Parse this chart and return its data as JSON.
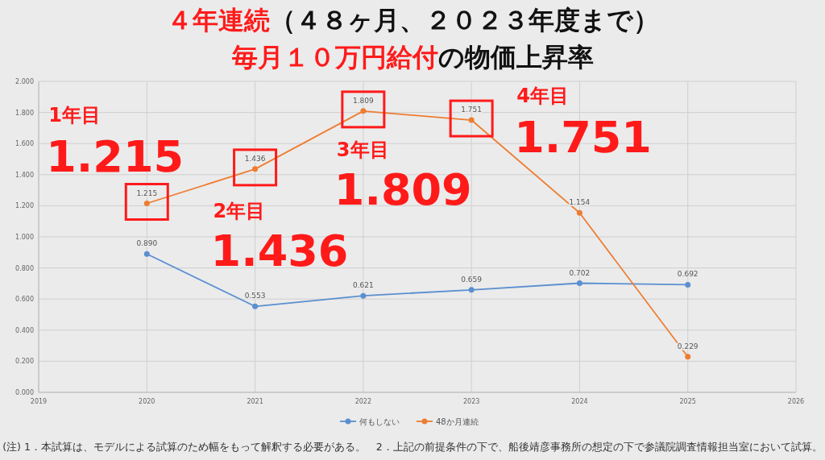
{
  "chart_data": {
    "type": "line",
    "title": "４年連続（４８ヶ月、２０２３年度まで）",
    "subtitle": "毎月１０万円給付の物価上昇率",
    "x": [
      2020,
      2021,
      2022,
      2023,
      2024,
      2025
    ],
    "xlim": [
      2019,
      2026
    ],
    "xticks": [
      2019,
      2020,
      2021,
      2022,
      2023,
      2024,
      2025,
      2026
    ],
    "ylim": [
      0,
      2
    ],
    "yticks": [
      {
        "value": 0,
        "label": "0.000"
      },
      {
        "value": 0.2,
        "label": "0.200"
      },
      {
        "value": 0.4,
        "label": "0.400"
      },
      {
        "value": 0.6,
        "label": "0.600"
      },
      {
        "value": 0.8,
        "label": "0.800"
      },
      {
        "value": 1,
        "label": "1.000"
      },
      {
        "value": 1.2,
        "label": "1.200"
      },
      {
        "value": 1.4,
        "label": "1.400"
      },
      {
        "value": 1.6,
        "label": "1.600"
      },
      {
        "value": 1.8,
        "label": "1.800"
      },
      {
        "value": 2,
        "label": "2.000"
      }
    ],
    "series": [
      {
        "name": "何もしない",
        "color": "#5b8fd0",
        "values": [
          0.89,
          0.553,
          0.621,
          0.659,
          0.702,
          0.692
        ],
        "value_labels": [
          "0.890",
          "0.553",
          "0.621",
          "0.659",
          "0.702",
          "0.692"
        ]
      },
      {
        "name": "48か月連続",
        "color": "#ed7d31",
        "values": [
          1.215,
          1.436,
          1.809,
          1.751,
          1.154,
          0.229
        ],
        "value_labels": [
          "1.215",
          "1.436",
          "1.809",
          "1.751",
          "1.154",
          "0.229"
        ]
      }
    ],
    "grid": true,
    "legend": "bottom",
    "marker": "circle",
    "line_style": "solid",
    "annotations": [
      {
        "text": "1年目\n1.215",
        "x": 2020,
        "y": 1.215
      },
      {
        "text": "2年目\n1.436",
        "x": 2021,
        "y": 1.436
      },
      {
        "text": "3年目\n1.809",
        "x": 2022,
        "y": 1.809
      },
      {
        "text": "4年目\n1.751",
        "x": 2023,
        "y": 1.751
      },
      "(注) 1．本試算は、モデルによる試算のため幅をもって解釈する必要がある。　2．上記の前提条件の下で、船後靖彦事務所の想定の下で参議院調査情報担当室において試算。"
    ]
  }
}
